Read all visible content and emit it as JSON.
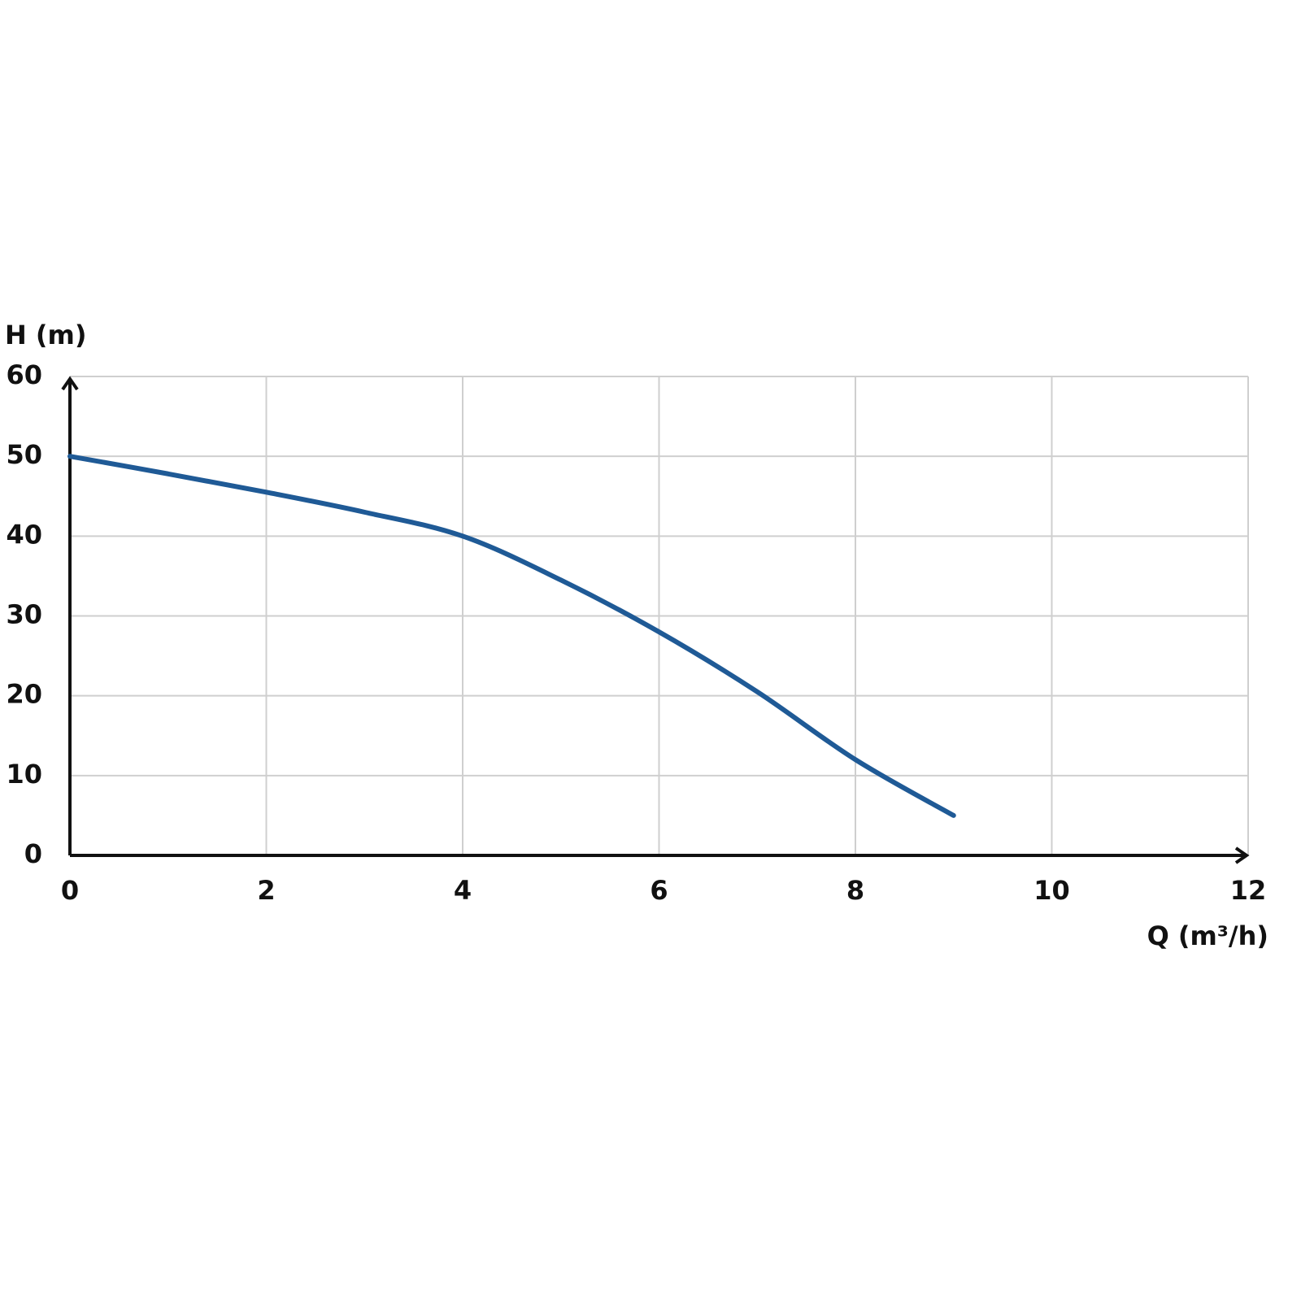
{
  "chart_data": {
    "type": "line",
    "x_label": "Q (m³/h)",
    "y_label": "H (m)",
    "x": [
      0,
      1,
      2,
      3,
      4,
      5,
      6,
      7,
      8,
      9
    ],
    "values": [
      50,
      47.8,
      45.5,
      43,
      40,
      34.5,
      28,
      20.5,
      12,
      5
    ],
    "color": "#1f5a96",
    "xlim": [
      0,
      12
    ],
    "xticks": [
      0,
      2,
      4,
      6,
      8,
      10,
      12
    ],
    "ylim": [
      0,
      60
    ],
    "yticks": [
      0,
      10,
      20,
      30,
      40,
      50,
      60
    ],
    "grid": true
  }
}
